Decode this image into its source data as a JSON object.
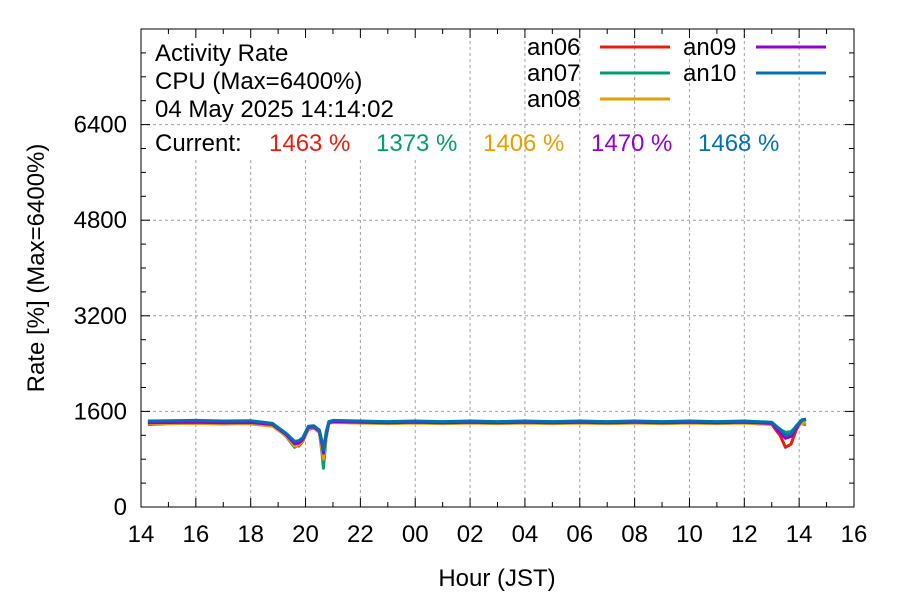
{
  "colors": {
    "an06": "#e51e10",
    "an07": "#009e73",
    "an08": "#e69f00",
    "an09": "#9400d3",
    "an10": "#0072b2",
    "grid": "#a0a0a0",
    "axis": "#000000"
  },
  "chart_data": {
    "type": "line",
    "title_lines": [
      "Activity Rate",
      "CPU (Max=6400%)",
      "04 May 2025 14:14:02"
    ],
    "current": {
      "label": "Current:",
      "values": [
        "1463 %",
        "1373 %",
        "1406 %",
        "1470 %",
        "1468 %"
      ]
    },
    "xlabel": "Hour (JST)",
    "ylabel": "Rate [%]  (Max=6400%)",
    "xlim": [
      14,
      40
    ],
    "ylim": [
      0,
      8000
    ],
    "x_ticks": [
      14,
      16,
      18,
      20,
      22,
      24,
      26,
      28,
      30,
      32,
      34,
      36,
      38,
      40
    ],
    "x_tick_labels": [
      "14",
      "16",
      "18",
      "20",
      "22",
      "00",
      "02",
      "04",
      "06",
      "08",
      "10",
      "12",
      "14",
      "16"
    ],
    "y_ticks": [
      0,
      1600,
      3200,
      4800,
      6400
    ],
    "y_tick_labels": [
      "0",
      "1600",
      "3200",
      "4800",
      "6400"
    ],
    "grid": true,
    "legend_position": "top-right",
    "series": [
      {
        "name": "an06",
        "color_key": "an06",
        "x": [
          14.25,
          15,
          16,
          17,
          18,
          18.8,
          19.3,
          19.6,
          19.75,
          19.9,
          20.1,
          20.3,
          20.5,
          20.65,
          20.75,
          20.85,
          21,
          22,
          23,
          24,
          25,
          26,
          27,
          28,
          29,
          30,
          31,
          32,
          33,
          34,
          35,
          36,
          37,
          37.3,
          37.5,
          37.7,
          37.9,
          38.1,
          38.25
        ],
        "y": [
          1380,
          1395,
          1400,
          1390,
          1400,
          1360,
          1200,
          1050,
          1020,
          1100,
          1300,
          1320,
          1250,
          1000,
          1200,
          1400,
          1420,
          1410,
          1400,
          1410,
          1400,
          1410,
          1400,
          1410,
          1400,
          1410,
          1400,
          1410,
          1400,
          1410,
          1400,
          1410,
          1380,
          1200,
          1000,
          1050,
          1300,
          1450,
          1463
        ]
      },
      {
        "name": "an07",
        "color_key": "an07",
        "x": [
          14.25,
          15,
          16,
          17,
          18,
          18.8,
          19.3,
          19.6,
          19.75,
          19.9,
          20.1,
          20.3,
          20.5,
          20.6,
          20.65,
          20.75,
          20.85,
          21,
          22,
          23,
          24,
          25,
          26,
          27,
          28,
          29,
          30,
          31,
          32,
          33,
          34,
          35,
          36,
          37,
          37.3,
          37.5,
          37.7,
          37.9,
          38.1,
          38.25
        ],
        "y": [
          1400,
          1405,
          1410,
          1400,
          1410,
          1370,
          1180,
          1000,
          1050,
          1120,
          1320,
          1330,
          1260,
          900,
          650,
          1150,
          1400,
          1420,
          1410,
          1400,
          1410,
          1400,
          1410,
          1400,
          1410,
          1400,
          1410,
          1400,
          1410,
          1400,
          1410,
          1400,
          1410,
          1390,
          1300,
          1250,
          1260,
          1350,
          1400,
          1373
        ]
      },
      {
        "name": "an08",
        "color_key": "an08",
        "x": [
          14.25,
          15,
          16,
          17,
          18,
          18.8,
          19.3,
          19.6,
          19.75,
          19.9,
          20.1,
          20.3,
          20.5,
          20.6,
          20.65,
          20.75,
          20.85,
          21,
          22,
          23,
          24,
          25,
          26,
          27,
          28,
          29,
          30,
          31,
          32,
          33,
          34,
          35,
          36,
          37,
          37.3,
          37.5,
          37.7,
          37.9,
          38.1,
          38.25
        ],
        "y": [
          1390,
          1400,
          1395,
          1400,
          1390,
          1350,
          1190,
          1020,
          1040,
          1110,
          1310,
          1325,
          1255,
          950,
          800,
          1180,
          1400,
          1415,
          1405,
          1395,
          1405,
          1395,
          1405,
          1395,
          1405,
          1395,
          1405,
          1395,
          1405,
          1395,
          1405,
          1395,
          1405,
          1380,
          1280,
          1200,
          1220,
          1340,
          1400,
          1406
        ]
      },
      {
        "name": "an09",
        "color_key": "an09",
        "x": [
          14.25,
          15,
          16,
          17,
          18,
          18.8,
          19.3,
          19.6,
          19.75,
          19.9,
          20.1,
          20.3,
          20.5,
          20.6,
          20.65,
          20.75,
          20.85,
          21,
          22,
          23,
          24,
          25,
          26,
          27,
          28,
          29,
          30,
          31,
          32,
          33,
          34,
          35,
          36,
          37,
          37.3,
          37.5,
          37.7,
          37.9,
          38.1,
          38.25
        ],
        "y": [
          1410,
          1415,
          1420,
          1410,
          1415,
          1380,
          1210,
          1060,
          1070,
          1130,
          1330,
          1340,
          1270,
          1050,
          900,
          1200,
          1410,
          1430,
          1420,
          1410,
          1420,
          1410,
          1420,
          1410,
          1420,
          1410,
          1420,
          1410,
          1420,
          1410,
          1420,
          1410,
          1420,
          1400,
          1250,
          1150,
          1180,
          1330,
          1450,
          1470
        ]
      },
      {
        "name": "an10",
        "color_key": "an10",
        "x": [
          14.25,
          15,
          16,
          17,
          18,
          18.8,
          19.3,
          19.6,
          19.75,
          19.9,
          20.1,
          20.3,
          20.5,
          20.6,
          20.65,
          20.75,
          20.85,
          21,
          22,
          23,
          24,
          25,
          26,
          27,
          28,
          29,
          30,
          31,
          32,
          33,
          34,
          35,
          36,
          37,
          37.3,
          37.5,
          37.7,
          37.9,
          38.1,
          38.25
        ],
        "y": [
          1440,
          1445,
          1450,
          1440,
          1445,
          1400,
          1230,
          1100,
          1110,
          1160,
          1350,
          1360,
          1290,
          1100,
          950,
          1250,
          1430,
          1450,
          1440,
          1430,
          1440,
          1430,
          1440,
          1430,
          1440,
          1430,
          1440,
          1430,
          1440,
          1430,
          1440,
          1430,
          1440,
          1420,
          1300,
          1200,
          1220,
          1360,
          1460,
          1468
        ]
      }
    ]
  }
}
